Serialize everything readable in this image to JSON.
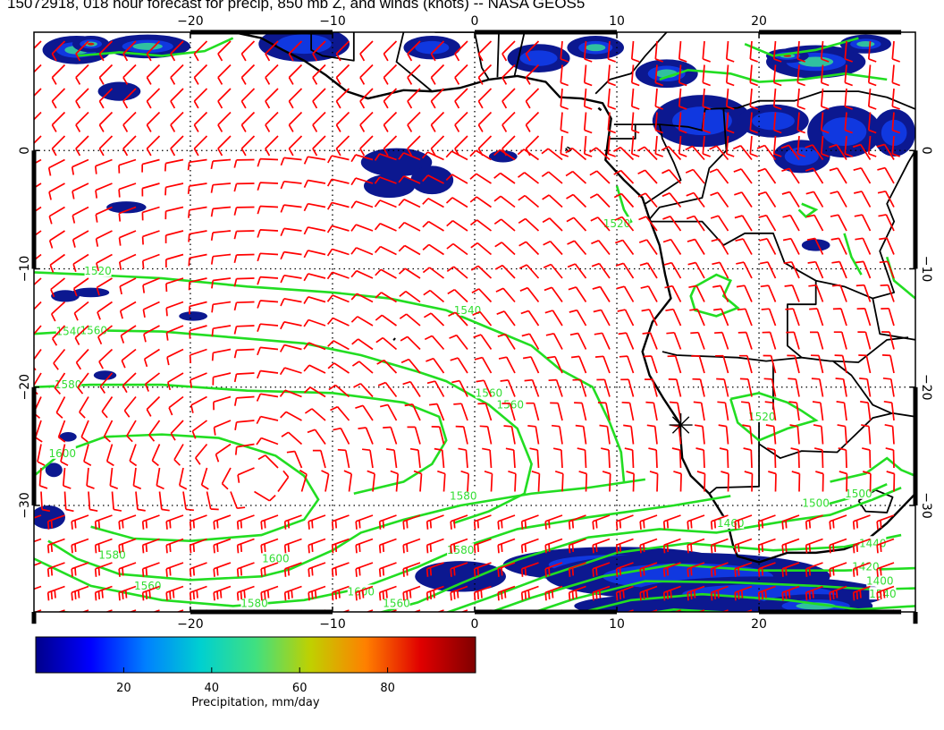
{
  "title": "15072918, 018 hour forecast for precip, 850 mb Z, and winds (knots) -- NASA GEOS5",
  "map": {
    "lon_range": [
      -31,
      31
    ],
    "lat_range": [
      -39,
      10
    ],
    "lon_ticks": [
      -20,
      -10,
      0,
      10,
      20
    ],
    "lat_ticks": [
      0,
      -10,
      -20,
      -30
    ],
    "lon_tick_labels": [
      "−20",
      "−10",
      "0",
      "10",
      "20"
    ],
    "lat_tick_labels": [
      "0",
      "−10",
      "−20",
      "−30"
    ],
    "grid": "dotted",
    "overlays": [
      "precipitation shading",
      "850 mb geopotential height contours",
      "wind barbs",
      "coastlines and country borders"
    ],
    "contour_color": "#22dd22",
    "barb_color": "#ff0000",
    "coast_color": "#000000",
    "contour_labels": [
      "1520",
      "1540",
      "1560",
      "1580",
      "1600",
      "1560",
      "1580",
      "1540",
      "1520",
      "1560",
      "1600",
      "1580",
      "1560",
      "1580",
      "1600",
      "1560",
      "1580",
      "1520",
      "1500",
      "1460",
      "1440",
      "1420",
      "1400",
      "1540",
      "1500"
    ]
  },
  "colorbar": {
    "label": "Precipitation, mm/day",
    "ticks": [
      "20",
      "40",
      "60",
      "80"
    ],
    "tick_values": [
      20,
      40,
      60,
      80
    ],
    "range": [
      0,
      100
    ],
    "colors": [
      "#00008b",
      "#0000ff",
      "#0080ff",
      "#00d0d0",
      "#40e080",
      "#c0d000",
      "#ff8000",
      "#e00000",
      "#800000"
    ]
  }
}
